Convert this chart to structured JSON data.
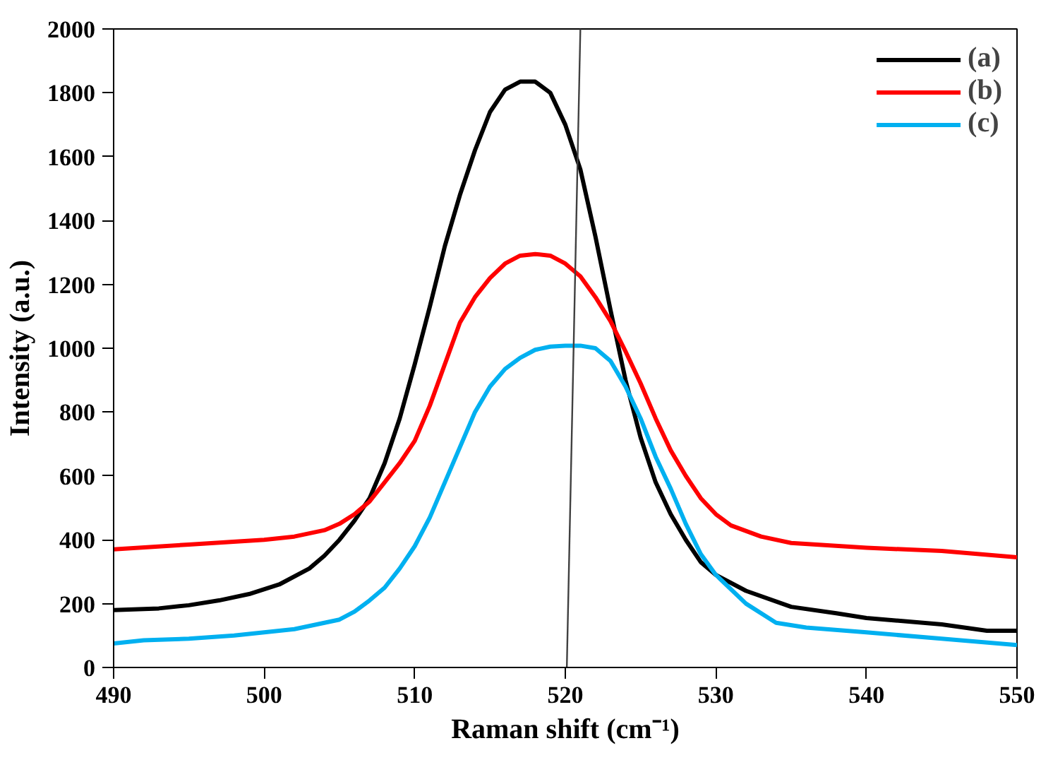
{
  "chart_data": {
    "type": "line",
    "xlabel": "Raman shift (cm⁻¹)",
    "ylabel": "Intensity (a.u.)",
    "xlim": [
      490,
      550
    ],
    "ylim": [
      0,
      2000
    ],
    "xticks": [
      490,
      500,
      510,
      520,
      530,
      540,
      550
    ],
    "yticks": [
      0,
      200,
      400,
      600,
      800,
      1000,
      1200,
      1400,
      1600,
      1800,
      2000
    ],
    "grid": false,
    "legend": "top right",
    "marker": "none",
    "line_style": "solid",
    "series": [
      {
        "name": "(a)",
        "color": "#000000",
        "x": [
          490,
          493,
          495,
          497,
          499,
          501,
          503,
          504,
          505,
          506,
          507,
          508,
          509,
          510,
          511,
          512,
          513,
          514,
          515,
          516,
          517,
          518,
          519,
          520,
          521,
          522,
          523,
          524,
          525,
          526,
          527,
          528,
          529,
          530,
          532,
          535,
          538,
          540,
          545,
          548,
          550
        ],
        "values": [
          180,
          185,
          195,
          210,
          230,
          260,
          310,
          350,
          400,
          460,
          530,
          640,
          780,
          950,
          1130,
          1320,
          1480,
          1620,
          1740,
          1810,
          1835,
          1835,
          1800,
          1700,
          1560,
          1350,
          1120,
          900,
          720,
          580,
          480,
          400,
          330,
          290,
          240,
          190,
          170,
          155,
          135,
          115,
          115
        ]
      },
      {
        "name": "(b)",
        "color": "#ff0000",
        "x": [
          490,
          495,
          500,
          502,
          504,
          505,
          506,
          507,
          508,
          509,
          510,
          511,
          512,
          513,
          514,
          515,
          516,
          517,
          518,
          519,
          520,
          521,
          522,
          523,
          524,
          525,
          526,
          527,
          528,
          529,
          530,
          531,
          533,
          535,
          540,
          545,
          550
        ],
        "values": [
          370,
          385,
          400,
          410,
          430,
          450,
          480,
          520,
          580,
          640,
          710,
          820,
          950,
          1080,
          1160,
          1220,
          1265,
          1290,
          1295,
          1290,
          1265,
          1225,
          1160,
          1085,
          990,
          890,
          780,
          680,
          600,
          530,
          480,
          445,
          410,
          390,
          375,
          365,
          345
        ]
      },
      {
        "name": "(c)",
        "color": "#00b0f0",
        "x": [
          490,
          492,
          495,
          498,
          500,
          502,
          504,
          505,
          506,
          507,
          508,
          509,
          510,
          511,
          512,
          513,
          514,
          515,
          516,
          517,
          518,
          519,
          520,
          521,
          522,
          523,
          524,
          525,
          526,
          527,
          528,
          529,
          530,
          531,
          532,
          534,
          536,
          540,
          545,
          550
        ],
        "values": [
          75,
          85,
          90,
          100,
          110,
          120,
          140,
          150,
          175,
          210,
          250,
          310,
          380,
          470,
          580,
          690,
          800,
          880,
          935,
          970,
          995,
          1005,
          1008,
          1008,
          1000,
          960,
          880,
          780,
          660,
          560,
          450,
          355,
          290,
          245,
          200,
          140,
          125,
          110,
          90,
          70
        ]
      },
      {
        "color": "#404040",
        "x": [
          520.1,
          521
        ],
        "values": [
          0,
          2000
        ]
      }
    ]
  }
}
